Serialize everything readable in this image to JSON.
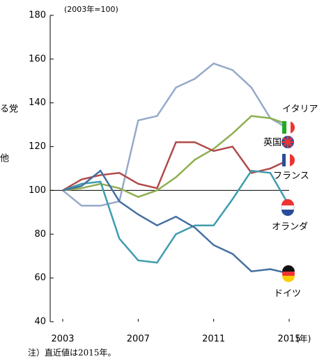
{
  "chart_data": {
    "type": "line",
    "subtitle": "(2003年=100)",
    "x_unit": "(年)",
    "note": "注）直近値は2015年。",
    "left_fragments": [
      "る党",
      "他"
    ],
    "x": [
      2003,
      2004,
      2005,
      2006,
      2007,
      2008,
      2009,
      2010,
      2011,
      2012,
      2013,
      2014,
      2015
    ],
    "xlim": [
      2003,
      2015
    ],
    "xticks": [
      2003,
      2007,
      2011,
      2015
    ],
    "ylim": [
      40,
      180
    ],
    "yticks": [
      40,
      60,
      80,
      100,
      120,
      140,
      160,
      180
    ],
    "reference_line": 100,
    "series": [
      {
        "name": "英国",
        "color": "#95a9c9",
        "values": [
          100,
          93,
          93,
          95,
          132,
          134,
          147,
          151,
          158,
          155,
          147,
          133,
          128
        ]
      },
      {
        "name": "イタリア",
        "color": "#8fae4f",
        "values": [
          100,
          101,
          103,
          101,
          97,
          100,
          106,
          114,
          119,
          126,
          134,
          133,
          130
        ]
      },
      {
        "name": "フランス",
        "color": "#b04a4a",
        "values": [
          100,
          105,
          107,
          108,
          103,
          101,
          122,
          122,
          118,
          120,
          108,
          110,
          114
        ]
      },
      {
        "name": "オランダ",
        "color": "#3f9cb0",
        "values": [
          100,
          103,
          104,
          78,
          68,
          67,
          80,
          84,
          84,
          96,
          109,
          108,
          93
        ]
      },
      {
        "name": "ドイツ",
        "color": "#4470a0",
        "values": [
          100,
          102,
          109,
          95,
          89,
          84,
          88,
          83,
          75,
          71,
          63,
          64,
          62
        ]
      }
    ]
  }
}
